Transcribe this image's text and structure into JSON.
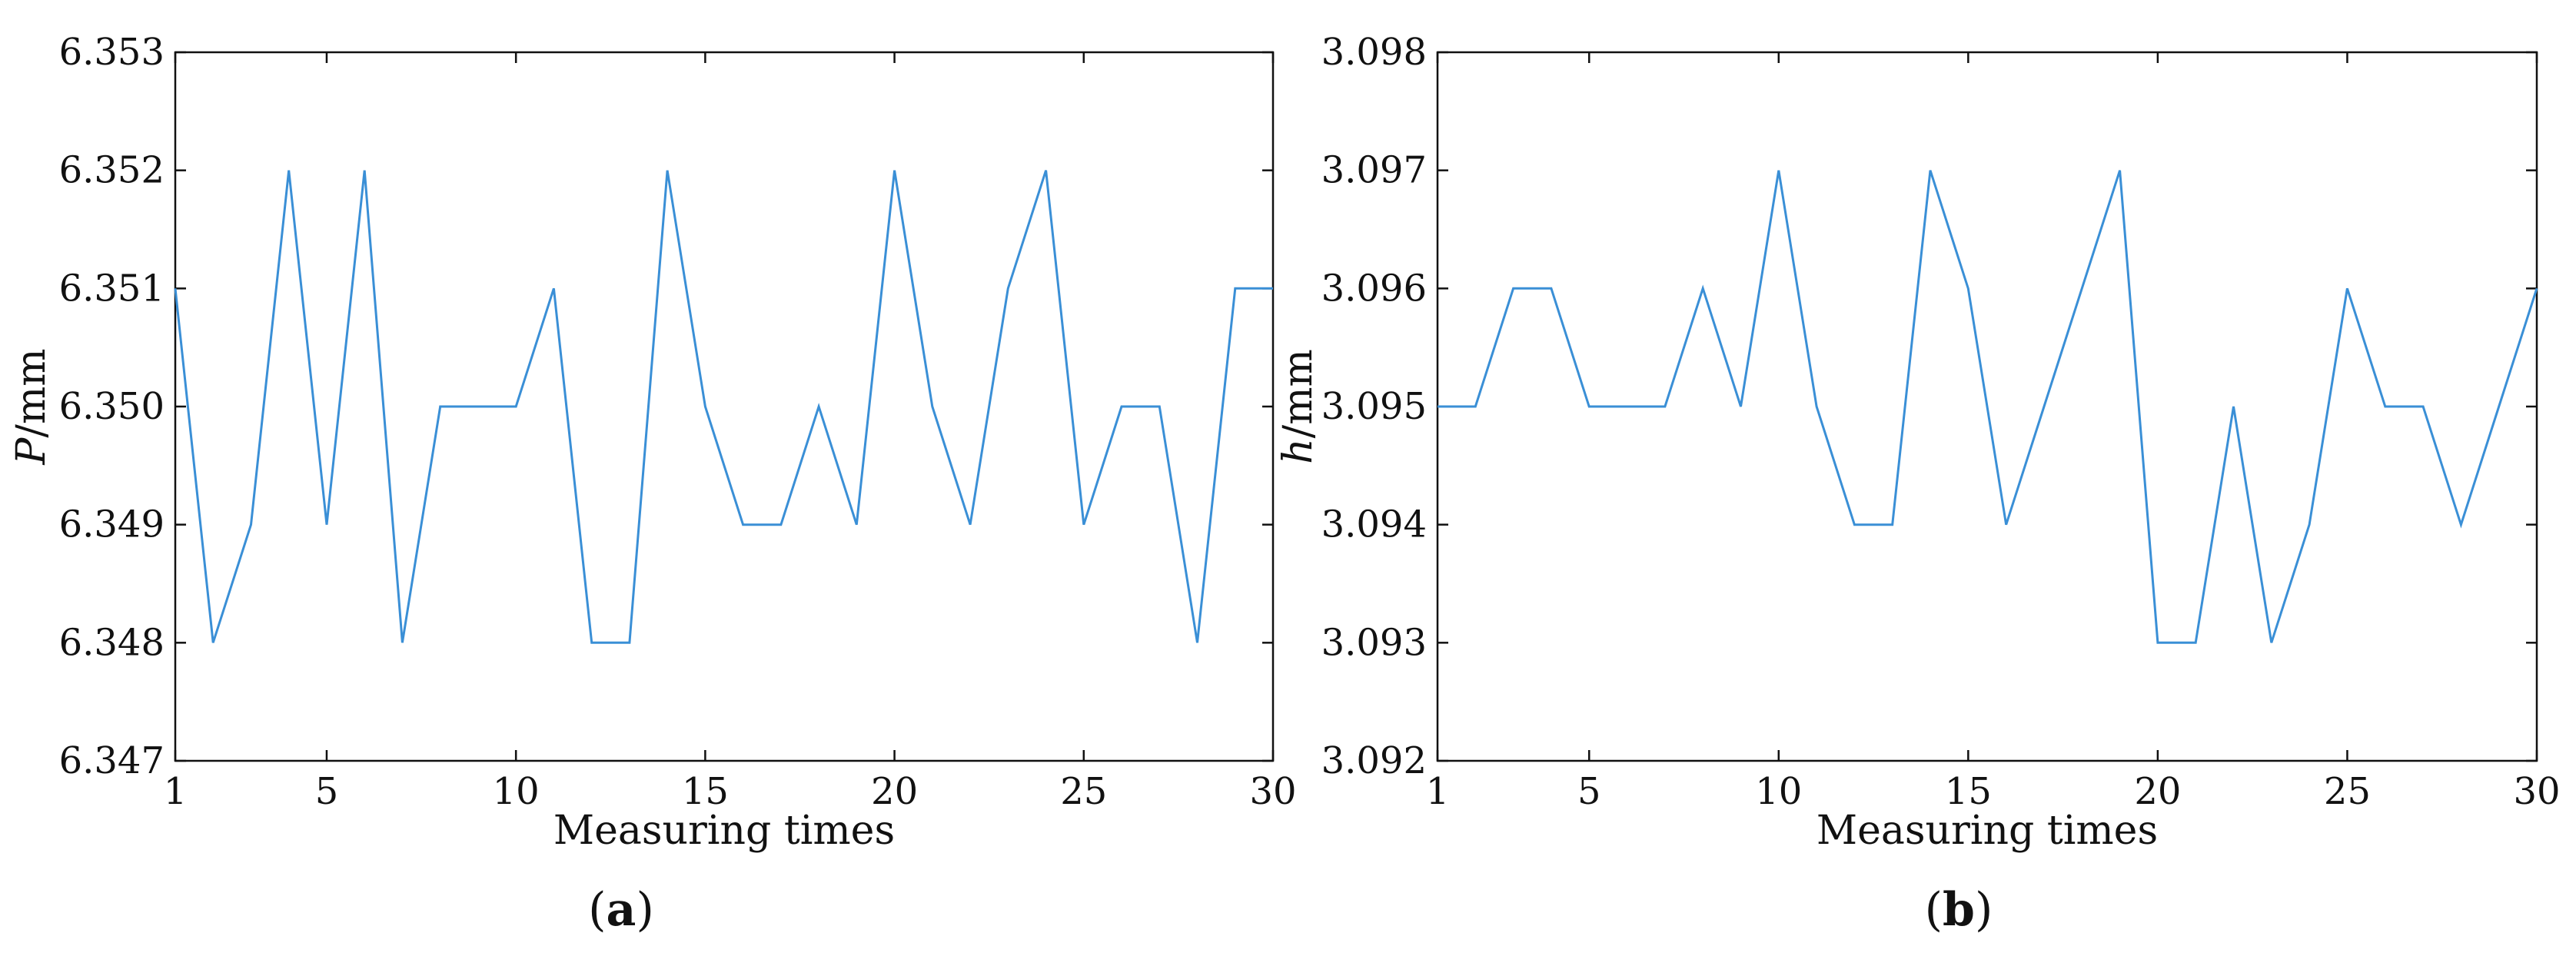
{
  "chart_data": [
    {
      "type": "line",
      "panel_label": "a",
      "ylabel": "P/mm",
      "ylabel_symbol": "P",
      "ylabel_unit": "/mm",
      "xlabel": "Measuring times",
      "xlim": [
        1,
        30
      ],
      "ylim": [
        6.347,
        6.353
      ],
      "xticks": [
        1,
        5,
        10,
        15,
        20,
        25,
        30
      ],
      "yticks": [
        "6.347",
        "6.348",
        "6.349",
        "6.350",
        "6.351",
        "6.352",
        "6.353"
      ],
      "grid": false,
      "line_color": "#3a8fd6",
      "x": [
        1,
        2,
        3,
        4,
        5,
        6,
        7,
        8,
        9,
        10,
        11,
        12,
        13,
        14,
        15,
        16,
        17,
        18,
        19,
        20,
        21,
        22,
        23,
        24,
        25,
        26,
        27,
        28,
        29,
        30
      ],
      "values": [
        6.351,
        6.348,
        6.349,
        6.352,
        6.349,
        6.352,
        6.348,
        6.35,
        6.35,
        6.35,
        6.351,
        6.348,
        6.348,
        6.352,
        6.35,
        6.349,
        6.349,
        6.35,
        6.349,
        6.352,
        6.35,
        6.349,
        6.351,
        6.352,
        6.349,
        6.35,
        6.35,
        6.348,
        6.351,
        6.351
      ]
    },
    {
      "type": "line",
      "panel_label": "b",
      "ylabel": "h/mm",
      "ylabel_symbol": "h",
      "ylabel_unit": "/mm",
      "xlabel": "Measuring times",
      "xlim": [
        1,
        30
      ],
      "ylim": [
        3.092,
        3.098
      ],
      "xticks": [
        1,
        5,
        10,
        15,
        20,
        25,
        30
      ],
      "yticks": [
        "3.092",
        "3.093",
        "3.094",
        "3.095",
        "3.096",
        "3.097",
        "3.098"
      ],
      "grid": false,
      "line_color": "#3a8fd6",
      "x": [
        1,
        2,
        3,
        4,
        5,
        6,
        7,
        8,
        9,
        10,
        11,
        12,
        13,
        14,
        15,
        16,
        17,
        18,
        19,
        20,
        21,
        22,
        23,
        24,
        25,
        26,
        27,
        28,
        29,
        30
      ],
      "values": [
        3.095,
        3.095,
        3.096,
        3.096,
        3.095,
        3.095,
        3.095,
        3.096,
        3.095,
        3.097,
        3.095,
        3.094,
        3.094,
        3.097,
        3.096,
        3.094,
        3.095,
        3.096,
        3.097,
        3.093,
        3.093,
        3.095,
        3.093,
        3.094,
        3.096,
        3.095,
        3.095,
        3.094,
        3.095,
        3.096
      ]
    }
  ]
}
